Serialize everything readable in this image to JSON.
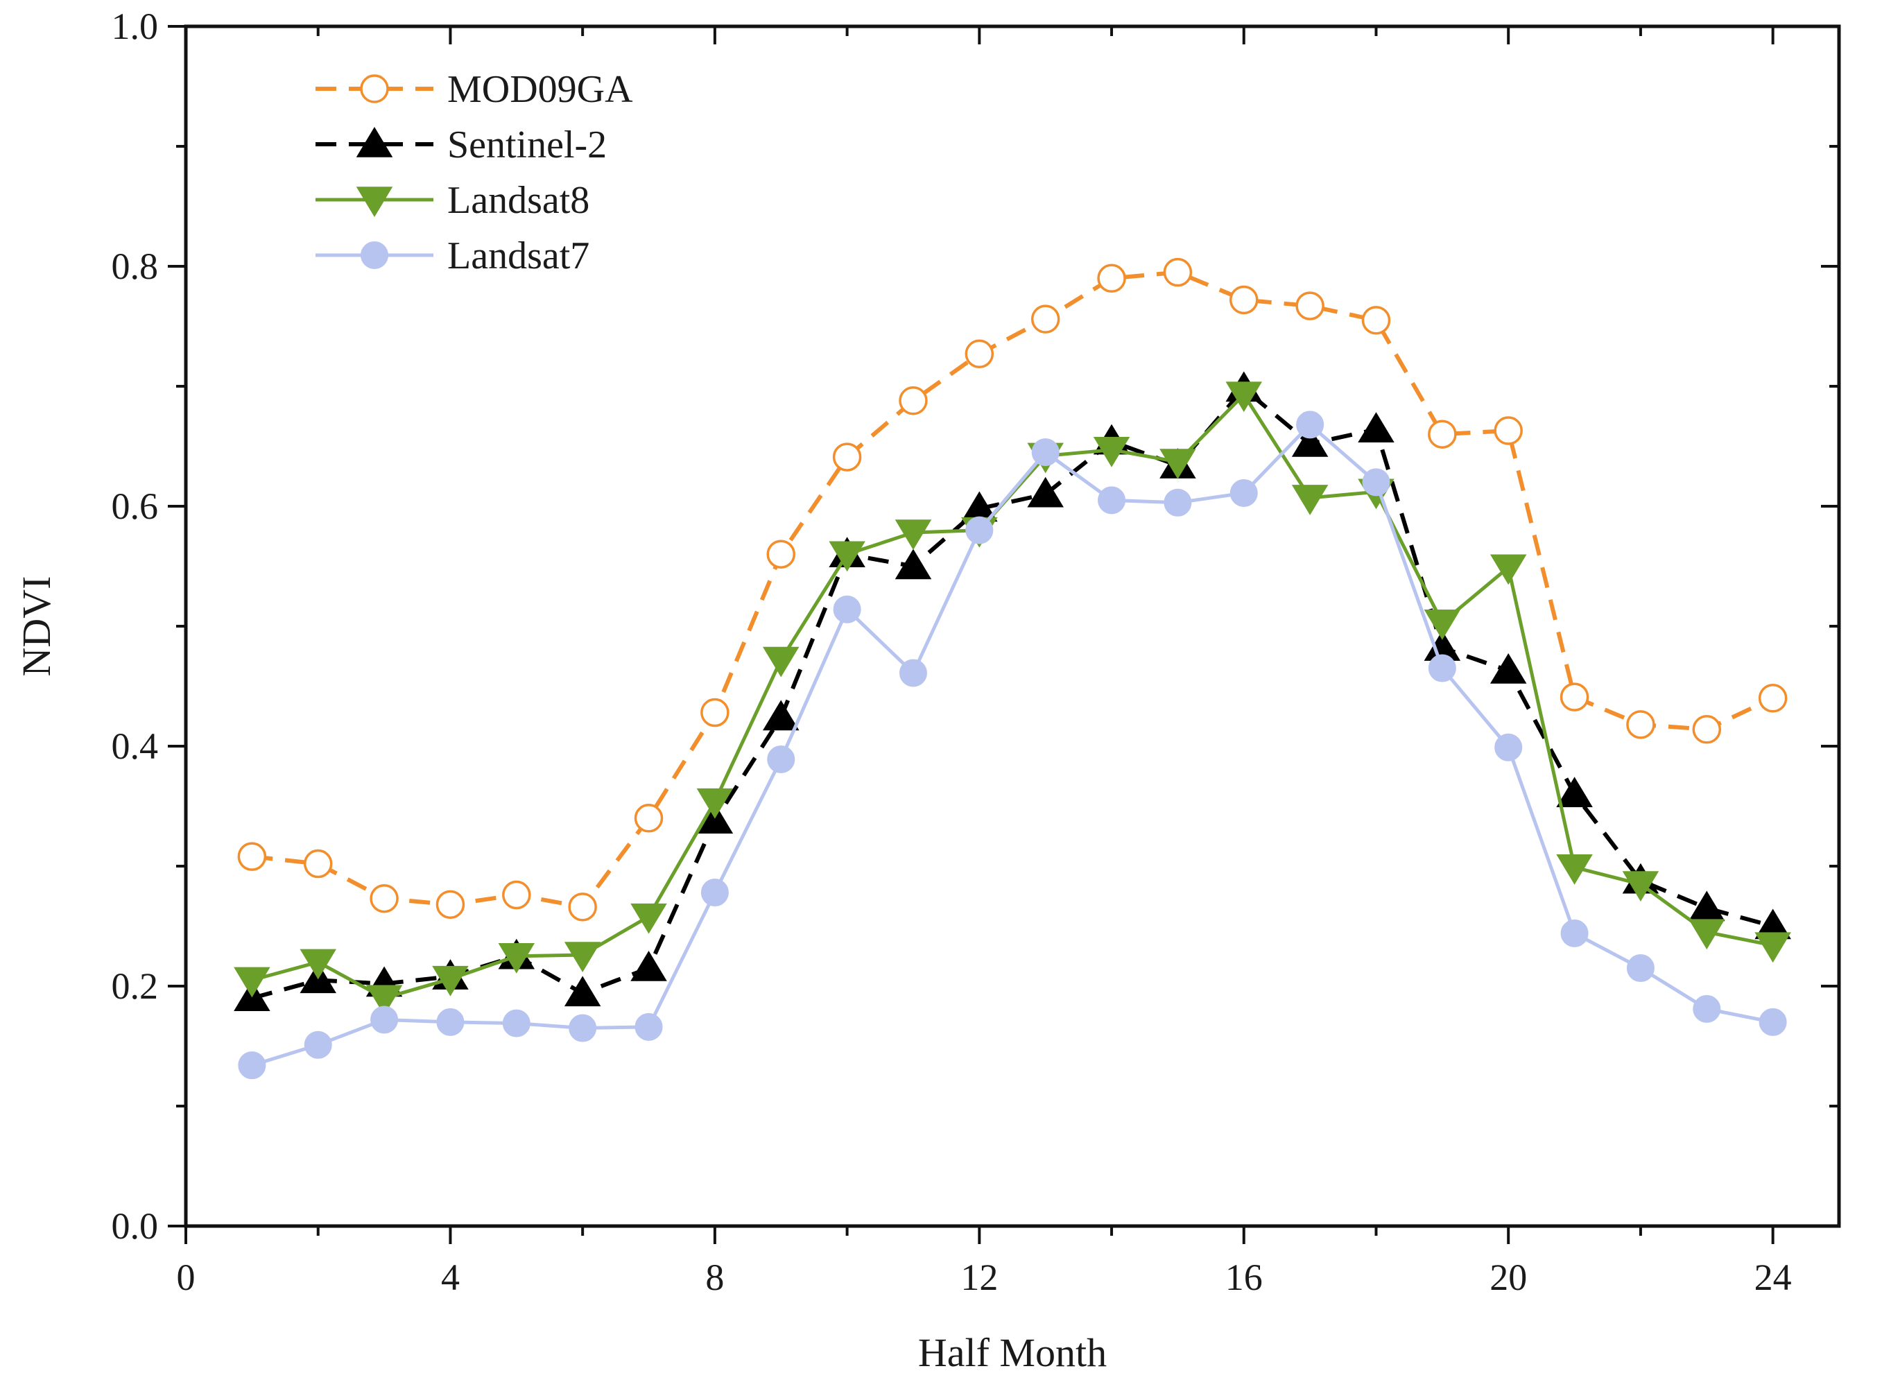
{
  "chart_data": {
    "type": "line",
    "xlabel": "Half Month",
    "ylabel": "NDVI",
    "xlim": [
      0,
      25
    ],
    "ylim": [
      0,
      1
    ],
    "xticks": [
      0,
      4,
      8,
      12,
      16,
      20,
      24
    ],
    "xtick_labels": [
      "0",
      "4",
      "8",
      "12",
      "16",
      "20",
      "24"
    ],
    "yticks": [
      0,
      0.2,
      0.4,
      0.6,
      0.8,
      1.0
    ],
    "ytick_labels": [
      "0.0",
      "0.2",
      "0.4",
      "0.6",
      "0.8",
      "1.0"
    ],
    "x": [
      1,
      2,
      3,
      4,
      5,
      6,
      7,
      8,
      9,
      10,
      11,
      12,
      13,
      14,
      15,
      16,
      17,
      18,
      19,
      20,
      21,
      22,
      23,
      24
    ],
    "legend_position": "top-left",
    "series": [
      {
        "name": "MOD09GA",
        "color": "#f28e2b",
        "line_style": "dashed",
        "marker": "open-circle",
        "values": [
          0.308,
          0.302,
          0.273,
          0.268,
          0.276,
          0.266,
          0.34,
          0.428,
          0.56,
          0.641,
          0.688,
          0.727,
          0.756,
          0.79,
          0.795,
          0.772,
          0.767,
          0.755,
          0.66,
          0.663,
          0.441,
          0.418,
          0.414,
          0.44
        ]
      },
      {
        "name": "Sentinel-2",
        "color": "#000000",
        "line_style": "dashed",
        "marker": "triangle-up",
        "values": [
          0.19,
          0.205,
          0.202,
          0.208,
          0.225,
          0.194,
          0.215,
          0.338,
          0.424,
          0.56,
          0.55,
          0.598,
          0.61,
          0.654,
          0.634,
          0.698,
          0.652,
          0.664,
          0.482,
          0.463,
          0.36,
          0.288,
          0.265,
          0.25
        ]
      },
      {
        "name": "Landsat8",
        "color": "#6a9f2a",
        "line_style": "solid",
        "marker": "triangle-down",
        "values": [
          0.205,
          0.22,
          0.19,
          0.206,
          0.225,
          0.226,
          0.258,
          0.354,
          0.472,
          0.56,
          0.578,
          0.58,
          0.642,
          0.647,
          0.637,
          0.693,
          0.607,
          0.612,
          0.503,
          0.549,
          0.299,
          0.285,
          0.245,
          0.234
        ]
      },
      {
        "name": "Landsat7",
        "color": "#b8c4f0",
        "line_style": "solid",
        "marker": "filled-circle",
        "values": [
          0.134,
          0.151,
          0.172,
          0.17,
          0.169,
          0.165,
          0.166,
          0.278,
          0.389,
          0.514,
          0.461,
          0.58,
          0.645,
          0.605,
          0.603,
          0.611,
          0.668,
          0.62,
          0.465,
          0.399,
          0.244,
          0.215,
          0.181,
          0.17
        ]
      }
    ]
  }
}
